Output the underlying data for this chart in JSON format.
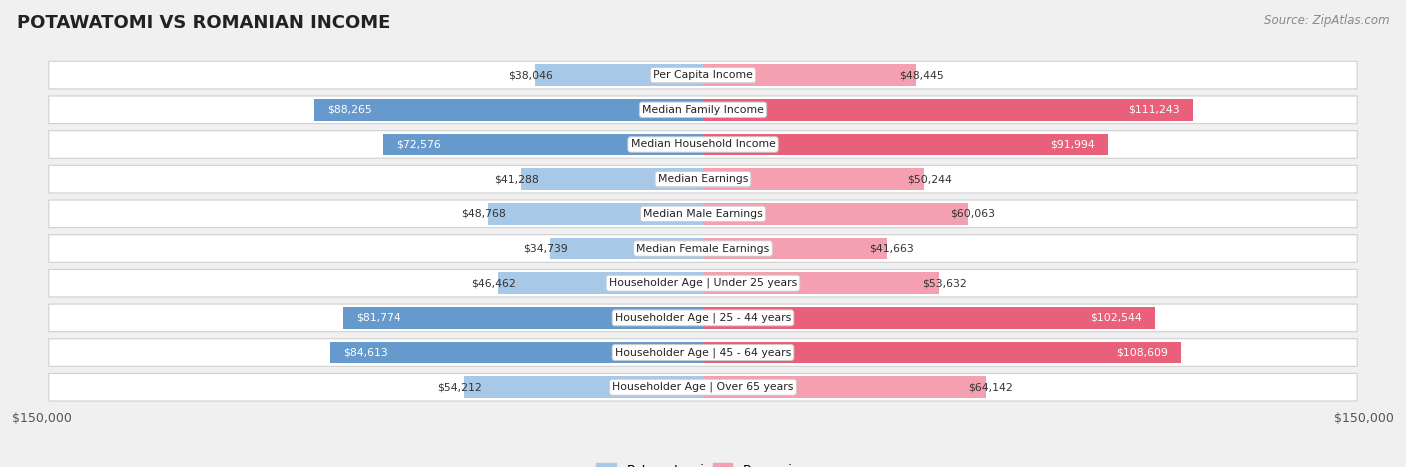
{
  "title": "POTAWATOMI VS ROMANIAN INCOME",
  "source": "Source: ZipAtlas.com",
  "categories": [
    "Per Capita Income",
    "Median Family Income",
    "Median Household Income",
    "Median Earnings",
    "Median Male Earnings",
    "Median Female Earnings",
    "Householder Age | Under 25 years",
    "Householder Age | 25 - 44 years",
    "Householder Age | 45 - 64 years",
    "Householder Age | Over 65 years"
  ],
  "potawatomi_values": [
    38046,
    88265,
    72576,
    41288,
    48768,
    34739,
    46462,
    81774,
    84613,
    54212
  ],
  "romanian_values": [
    48445,
    111243,
    91994,
    50244,
    60063,
    41663,
    53632,
    102544,
    108609,
    64142
  ],
  "potawatomi_labels": [
    "$38,046",
    "$88,265",
    "$72,576",
    "$41,288",
    "$48,768",
    "$34,739",
    "$46,462",
    "$81,774",
    "$84,613",
    "$54,212"
  ],
  "romanian_labels": [
    "$48,445",
    "$111,243",
    "$91,994",
    "$50,244",
    "$60,063",
    "$41,663",
    "$53,632",
    "$102,544",
    "$108,609",
    "$64,142"
  ],
  "potawatomi_color_light": "#a8c8e8",
  "potawatomi_color_dark": "#6699cc",
  "romanian_color_light": "#f4a0b0",
  "romanian_color_dark": "#e8607a",
  "xlim": 150000,
  "axis_label_left": "$150,000",
  "axis_label_right": "$150,000",
  "legend_potawatomi": "Potawatomi",
  "legend_romanian": "Romanian",
  "bg_color": "#f0f0f0",
  "row_bg_color": "#ffffff",
  "row_border_color": "#d0d0d0",
  "label_inside_threshold_pot": 55000,
  "label_inside_threshold_rom": 70000
}
